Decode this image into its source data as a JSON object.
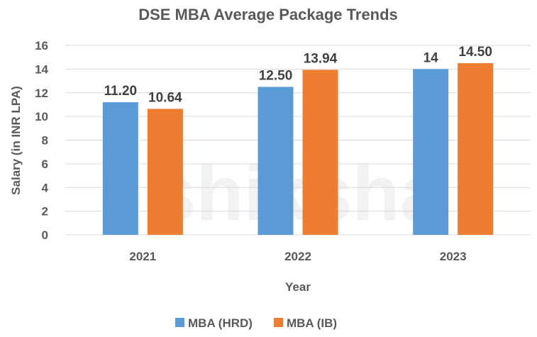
{
  "chart_data": {
    "type": "bar",
    "title": "DSE MBA Average Package Trends",
    "xlabel": "Year",
    "ylabel": "Salary (in INR LPA)",
    "categories": [
      "2021",
      "2022",
      "2023"
    ],
    "series": [
      {
        "name": "MBA (HRD)",
        "color": "#5B9BD5",
        "values": [
          11.2,
          12.5,
          14
        ],
        "labels": [
          "11.20",
          "12.50",
          "14"
        ]
      },
      {
        "name": "MBA (IB)",
        "color": "#ED7D31",
        "values": [
          10.64,
          13.94,
          14.5
        ],
        "labels": [
          "10.64",
          "13.94",
          "14.50"
        ]
      }
    ],
    "ylim": [
      0,
      16
    ],
    "yticks": [
      "0",
      "2",
      "4",
      "6",
      "8",
      "10",
      "12",
      "14",
      "16"
    ],
    "grid": true,
    "legend": "bottom",
    "watermark": "shiksha"
  }
}
